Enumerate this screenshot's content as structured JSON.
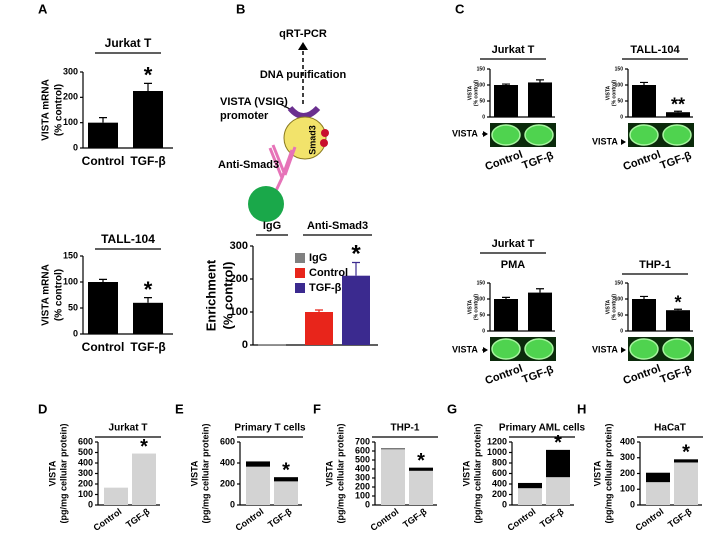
{
  "diagram": {
    "qrt_pcr": "qRT-PCR",
    "dna_purification": "DNA purification",
    "promoter": [
      "VISTA (VSIG)",
      "promoter"
    ],
    "protein": "Smad3",
    "antibody": "Anti-Smad3"
  },
  "chart_data": [
    {
      "panel": "A",
      "type": "bar",
      "title": "Jurkat T",
      "ylabel": [
        "VISTA mRNA",
        "(% control)"
      ],
      "categories": [
        "Control",
        "TGF-β"
      ],
      "values": [
        100,
        225
      ],
      "errors": [
        20,
        30
      ],
      "significance": [
        null,
        "*"
      ],
      "color": "#000000",
      "ylim": [
        0,
        300
      ],
      "yticks": [
        0,
        100,
        200,
        300
      ]
    },
    {
      "type": "bar",
      "title": "TALL-104",
      "ylabel": [
        "VISTA mRNA",
        "(% control)"
      ],
      "categories": [
        "Control",
        "TGF-β"
      ],
      "values": [
        100,
        60
      ],
      "errors": [
        5,
        10
      ],
      "significance": [
        null,
        "*"
      ],
      "color": "#000000",
      "ylim": [
        0,
        150
      ],
      "yticks": [
        0,
        50,
        100,
        150
      ]
    },
    {
      "panel": "B",
      "type": "bar",
      "ylabel": [
        "Enrichment",
        "(% control)"
      ],
      "categories": [
        "IgG",
        "Control",
        "TGF-β"
      ],
      "values": [
        2,
        100,
        210
      ],
      "errors": [
        null,
        6,
        40
      ],
      "significance": [
        null,
        null,
        "*"
      ],
      "colors": [
        "#808080",
        "#e8251b",
        "#3b2a8f"
      ],
      "groups": [
        "IgG",
        "Anti-Smad3"
      ],
      "legend": "top-left",
      "ylim": [
        0,
        300
      ],
      "yticks": [
        0,
        100,
        200,
        300
      ]
    },
    {
      "panel": "C",
      "type": "bar",
      "title": "Jurkat T",
      "ylabel": [
        "VISTA",
        "(% control)"
      ],
      "categories": [
        "Control",
        "TGF-β"
      ],
      "values": [
        100,
        108
      ],
      "errors": [
        3,
        8
      ],
      "significance": [
        null,
        null
      ],
      "color": "#000000",
      "ylim": [
        0,
        150
      ],
      "yticks": [
        0,
        50,
        100,
        150
      ],
      "blot_label": "VISTA"
    },
    {
      "type": "bar",
      "title": "TALL-104",
      "ylabel": [
        "VISTA",
        "(% control)"
      ],
      "categories": [
        "Control",
        "TGF-β"
      ],
      "values": [
        100,
        15
      ],
      "errors": [
        8,
        3
      ],
      "significance": [
        null,
        "**"
      ],
      "color": "#000000",
      "ylim": [
        0,
        150
      ],
      "yticks": [
        0,
        50,
        100,
        150
      ],
      "blot_label": "VISTA"
    },
    {
      "type": "bar",
      "title": "Jurkat T",
      "subtitle": "PMA",
      "ylabel": [
        "VISTA",
        "(% control)"
      ],
      "categories": [
        "Control",
        "TGF-β"
      ],
      "values": [
        100,
        120
      ],
      "errors": [
        5,
        12
      ],
      "significance": [
        null,
        null
      ],
      "color": "#000000",
      "ylim": [
        0,
        150
      ],
      "yticks": [
        0,
        50,
        100,
        150
      ],
      "blot_label": "VISTA"
    },
    {
      "type": "bar",
      "title": "THP-1",
      "ylabel": [
        "VISTA",
        "(% control)"
      ],
      "categories": [
        "Control",
        "TGF-β"
      ],
      "values": [
        100,
        65
      ],
      "errors": [
        8,
        3
      ],
      "significance": [
        null,
        "*"
      ],
      "color": "#000000",
      "ylim": [
        0,
        150
      ],
      "yticks": [
        0,
        50,
        100,
        150
      ],
      "blot_label": "VISTA"
    },
    {
      "panel": "D",
      "type": "stacked-bar",
      "title": "Jurkat T",
      "ylabel": [
        "VISTA",
        "(pg/mg cellular protein)"
      ],
      "categories": [
        "Control",
        "TGF-β"
      ],
      "series": [
        {
          "color": "#d3d3d3",
          "values": [
            165,
            490
          ]
        }
      ],
      "significance": [
        null,
        "*"
      ],
      "ylim": [
        0,
        600
      ],
      "yticks": [
        0,
        100,
        200,
        300,
        400,
        500,
        600
      ]
    },
    {
      "panel": "E",
      "type": "stacked-bar",
      "title": "Primary T cells",
      "ylabel": [
        "VISTA",
        "(pg/mg cellular protein)"
      ],
      "categories": [
        "Control",
        "TGF-β"
      ],
      "series": [
        {
          "color": "#d3d3d3",
          "values": [
            365,
            225
          ]
        },
        {
          "color": "#000000",
          "values": [
            50,
            40
          ]
        }
      ],
      "significance": [
        null,
        "*"
      ],
      "ylim": [
        0,
        600
      ],
      "yticks": [
        0,
        200,
        400,
        600
      ]
    },
    {
      "panel": "F",
      "type": "stacked-bar",
      "title": "THP-1",
      "ylabel": [
        "VISTA",
        "(pg/mg cellular protein)"
      ],
      "categories": [
        "Control",
        "TGF-β"
      ],
      "series": [
        {
          "color": "#d3d3d3",
          "values": [
            620,
            380
          ]
        },
        {
          "color": "#000000",
          "values": [
            8,
            35
          ]
        }
      ],
      "significance": [
        null,
        "*"
      ],
      "ylim": [
        0,
        700
      ],
      "yticks": [
        0,
        100,
        200,
        300,
        400,
        500,
        600,
        700
      ]
    },
    {
      "panel": "G",
      "type": "stacked-bar",
      "title": "Primary AML cells",
      "ylabel": [
        "VISTA",
        "(pg/mg cellular protein)"
      ],
      "categories": [
        "Control",
        "TGF-β"
      ],
      "series": [
        {
          "color": "#d3d3d3",
          "values": [
            320,
            530
          ]
        },
        {
          "color": "#000000",
          "values": [
            100,
            520
          ]
        }
      ],
      "significance": [
        null,
        "*"
      ],
      "ylim": [
        0,
        1200
      ],
      "yticks": [
        0,
        200,
        400,
        600,
        800,
        1000,
        1200
      ]
    },
    {
      "panel": "H",
      "type": "stacked-bar",
      "title": "HaCaT",
      "ylabel": [
        "VISTA",
        "(pg/mg cellular protein)"
      ],
      "categories": [
        "Control",
        "TGF-β"
      ],
      "series": [
        {
          "color": "#d3d3d3",
          "values": [
            145,
            270
          ]
        },
        {
          "color": "#000000",
          "values": [
            60,
            20
          ]
        }
      ],
      "significance": [
        null,
        "*"
      ],
      "ylim": [
        0,
        400
      ],
      "yticks": [
        0,
        100,
        200,
        300,
        400
      ]
    }
  ]
}
